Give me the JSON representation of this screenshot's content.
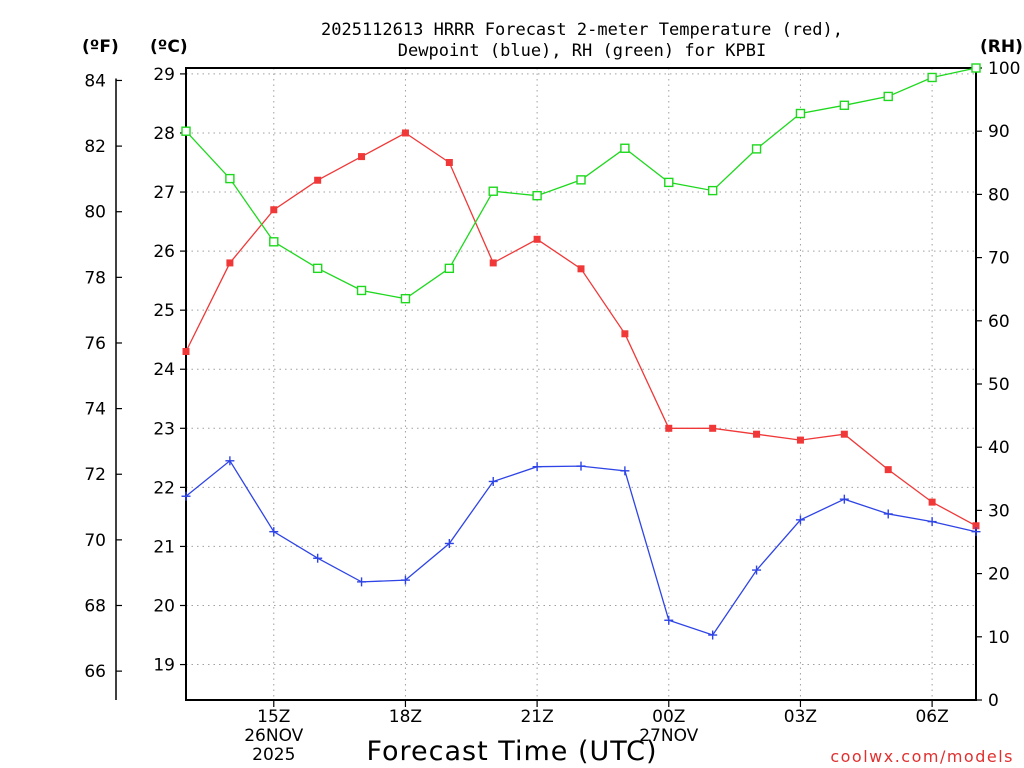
{
  "chart_data": {
    "type": "line",
    "title_line1": "2025112613 HRRR Forecast 2-meter Temperature (red),",
    "title_line2": "Dewpoint (blue), RH (green) for KPBI",
    "xlabel": "Forecast Time (UTC)",
    "watermark": "coolwx.com/models",
    "unit_labels": {
      "fahrenheit": "(ºF)",
      "celsius": "(ºC)",
      "rh": "(RH)"
    },
    "x": [
      13,
      14,
      15,
      16,
      17,
      18,
      19,
      20,
      21,
      22,
      23,
      24,
      25,
      26,
      27,
      28,
      29,
      30,
      31
    ],
    "x_range": [
      13,
      31
    ],
    "x_ticks": [
      {
        "x": 15,
        "label": "15Z",
        "sub1": "26NOV",
        "sub2": "2025"
      },
      {
        "x": 18,
        "label": "18Z",
        "sub1": "",
        "sub2": ""
      },
      {
        "x": 21,
        "label": "21Z",
        "sub1": "",
        "sub2": ""
      },
      {
        "x": 24,
        "label": "00Z",
        "sub1": "27NOV",
        "sub2": ""
      },
      {
        "x": 27,
        "label": "03Z",
        "sub1": "",
        "sub2": ""
      },
      {
        "x": 30,
        "label": "06Z",
        "sub1": "",
        "sub2": ""
      }
    ],
    "left_c_range": [
      18.4,
      29.1
    ],
    "celsius_ticks": [
      19,
      20,
      21,
      22,
      23,
      24,
      25,
      26,
      27,
      28,
      29
    ],
    "fahrenheit_ticks": [
      66,
      68,
      70,
      72,
      74,
      76,
      78,
      80,
      82,
      84
    ],
    "rh_range": [
      0,
      100
    ],
    "rh_ticks": [
      0,
      10,
      20,
      30,
      40,
      50,
      60,
      70,
      80,
      90,
      100
    ],
    "series": [
      {
        "name": "Temperature",
        "unit": "C",
        "color": "#f03838",
        "marker": "filled-square",
        "values": [
          24.3,
          25.8,
          26.7,
          27.2,
          27.6,
          28.0,
          27.5,
          25.8,
          26.2,
          25.7,
          24.6,
          23.0,
          23.0,
          22.9,
          22.8,
          22.9,
          22.3,
          21.75,
          21.35
        ]
      },
      {
        "name": "Dewpoint",
        "unit": "C",
        "color": "#2e44e6",
        "marker": "plus",
        "values": [
          21.85,
          22.45,
          21.25,
          20.8,
          20.4,
          20.43,
          21.05,
          22.1,
          22.35,
          22.36,
          22.28,
          19.75,
          19.5,
          20.6,
          21.45,
          21.8,
          21.55,
          21.42,
          21.25
        ]
      },
      {
        "name": "RH",
        "unit": "%",
        "color": "#1ed81e",
        "marker": "open-square",
        "values": [
          90,
          82.5,
          72.5,
          68.3,
          64.8,
          63.5,
          68.3,
          80.5,
          79.8,
          82.3,
          87.3,
          81.9,
          80.6,
          87.2,
          92.8,
          94.1,
          95.5,
          98.5,
          100
        ]
      }
    ]
  }
}
